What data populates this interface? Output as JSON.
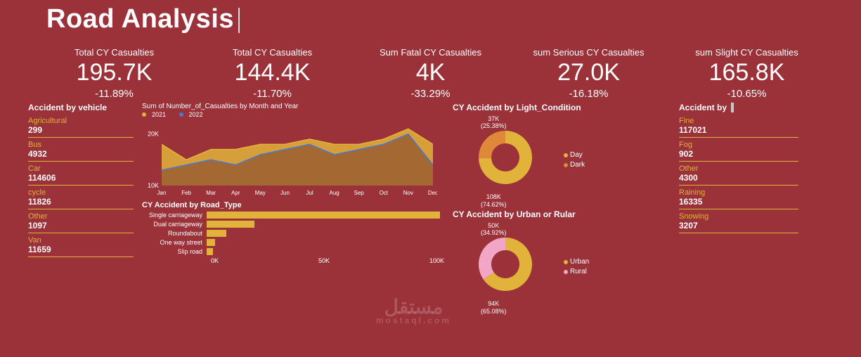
{
  "title": "Road Analysis",
  "colors": {
    "bg": "#9b3139",
    "accent": "#e2b33a",
    "blue": "#4a7bd1",
    "orange": "#e0883a",
    "pink": "#f0a6c4",
    "text": "#ffffff"
  },
  "kpis": [
    {
      "label": "Total CY Casualties",
      "value": "195.7K",
      "delta": "-11.89%"
    },
    {
      "label": "Total CY Casualties",
      "value": "144.4K",
      "delta": "-11.70%"
    },
    {
      "label": "Sum Fatal CY Casualties",
      "value": "4K",
      "delta": "-33.29%"
    },
    {
      "label": "sum Serious CY Casualties",
      "value": "27.0K",
      "delta": "-16.18%"
    },
    {
      "label": "sum Slight CY Casualties",
      "value": "165.8K",
      "delta": "-10.65%"
    }
  ],
  "left": {
    "title": "Accident by vehicle",
    "items": [
      {
        "name": "Agricultural",
        "value": "299"
      },
      {
        "name": "Bus",
        "value": "4932"
      },
      {
        "name": "Car",
        "value": "114606"
      },
      {
        "name": "cycle",
        "value": "11826"
      },
      {
        "name": "Other",
        "value": "1097"
      },
      {
        "name": "Van",
        "value": "11659"
      }
    ]
  },
  "area": {
    "title": "Sum of Number_of_Casualties by Month and Year",
    "legend": [
      {
        "label": "2021",
        "color": "#e2b33a"
      },
      {
        "label": "2022",
        "color": "#4a7bd1"
      }
    ],
    "months": [
      "Jan",
      "Feb",
      "Mar",
      "Apr",
      "May",
      "Jun",
      "Jul",
      "Aug",
      "Sep",
      "Oct",
      "Nov",
      "Dec"
    ],
    "yticks": [
      "10K",
      "20K"
    ],
    "series2021": [
      18,
      15,
      17,
      17,
      18,
      18,
      19,
      18,
      18,
      19,
      21,
      18
    ],
    "series2022": [
      13,
      14,
      15,
      14,
      16,
      17,
      18,
      16,
      17,
      18,
      20,
      14
    ],
    "ylim": [
      10,
      22
    ]
  },
  "bars": {
    "title": "CY Accident by Road_Type",
    "rows": [
      {
        "label": "Single carriageway",
        "value": 108000
      },
      {
        "label": "Dual carriageway",
        "value": 22000
      },
      {
        "label": "Roundabout",
        "value": 9000
      },
      {
        "label": "One way street",
        "value": 4000
      },
      {
        "label": "Slip road",
        "value": 3000
      }
    ],
    "xmax": 110000,
    "xticks": [
      "0K",
      "50K",
      "100K"
    ]
  },
  "donut1": {
    "title": "CY Accident by Light_Condition",
    "slices": [
      {
        "label": "Day",
        "value": 108000,
        "pct": "74.62%",
        "color": "#e2b33a"
      },
      {
        "label": "Dark",
        "value": 37000,
        "pct": "25.38%",
        "color": "#e0883a"
      }
    ],
    "top_label": "37K\n(25.38%)",
    "bottom_label": "108K\n(74.62%)"
  },
  "donut2": {
    "title": "CY Accident by Urban or Rular",
    "slices": [
      {
        "label": "Urban",
        "value": 94000,
        "pct": "65.08%",
        "color": "#e2b33a"
      },
      {
        "label": "Rural",
        "value": 50000,
        "pct": "34.92%",
        "color": "#f0a6c4"
      }
    ],
    "top_label": "50K\n(34.92%)",
    "bottom_label": "94K\n(65.08%)"
  },
  "right": {
    "title": "Accident by",
    "items": [
      {
        "name": "Fine",
        "value": "117021"
      },
      {
        "name": "Fog",
        "value": "902"
      },
      {
        "name": "Other",
        "value": "4300"
      },
      {
        "name": "Raining",
        "value": "16335"
      },
      {
        "name": "Snowing",
        "value": "3207"
      }
    ]
  },
  "watermark": {
    "main": "مستقل",
    "sub": "mostaql.com"
  }
}
